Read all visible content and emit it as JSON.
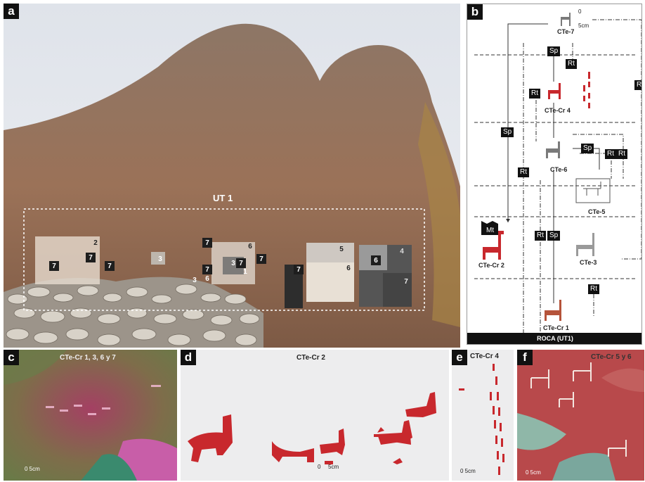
{
  "panels": {
    "a": {
      "label": "a",
      "ut_label": "UT 1",
      "numbers": [
        "2",
        "7",
        "7",
        "7",
        "3",
        "7",
        "6",
        "3",
        "7",
        "7",
        "1",
        "3",
        "6",
        "7",
        "5",
        "7",
        "6",
        "6",
        "4",
        "7"
      ]
    },
    "b": {
      "label": "b",
      "base_label": "ROCA (UT1)",
      "nodes": {
        "cte7": "CTe-7",
        "cr4": "CTe-Cr 4",
        "cte6": "CTe-6",
        "cte5": "CTe-5",
        "cr2": "CTe-Cr 2",
        "cte3": "CTe-3",
        "cr1": "CTe-Cr 1"
      },
      "tags": {
        "sp": "Sp",
        "rt": "Rt",
        "mt": "Mt"
      },
      "scale_zero": "0",
      "scale_unit": "5cm"
    },
    "c": {
      "label": "c",
      "title": "CTe-Cr 1, 3, 6 y 7",
      "scale": "0 5cm"
    },
    "d": {
      "label": "d",
      "title": "CTe-Cr 2",
      "scale_zero": "0",
      "scale_unit": "5cm"
    },
    "e": {
      "label": "e",
      "title": "CTe-Cr 4",
      "scale": "0 5cm"
    },
    "f": {
      "label": "f",
      "title": "CTe-Cr 5 y 6",
      "scale": "0 5cm"
    }
  },
  "colors": {
    "red": "#c8282d",
    "rock": "#8a6a52",
    "sky": "#e6e8ec",
    "grey": "#7a7a7a"
  }
}
